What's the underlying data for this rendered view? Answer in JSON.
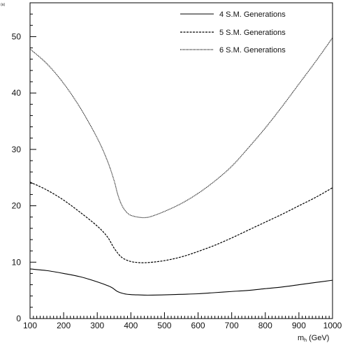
{
  "chart_data": {
    "type": "line",
    "title": "",
    "corner_label": "(a)",
    "xlabel": "m",
    "xlabel_sub": "h",
    "xlabel_unit": " (GeV)",
    "ylabel": "",
    "xlim": [
      100,
      1000
    ],
    "ylim": [
      0,
      56
    ],
    "xticks": [
      100,
      200,
      300,
      400,
      500,
      600,
      700,
      800,
      900,
      1000
    ],
    "yticks": [
      0,
      10,
      20,
      30,
      40,
      50
    ],
    "grid": false,
    "legend_position": "top-right",
    "series": [
      {
        "name": "4 S.M. Generations",
        "line_style": "solid",
        "x": [
          100,
          150,
          200,
          250,
          300,
          340,
          360,
          380,
          400,
          420,
          450,
          500,
          550,
          600,
          650,
          700,
          750,
          800,
          850,
          900,
          950,
          1000
        ],
        "y": [
          8.8,
          8.5,
          8.0,
          7.4,
          6.5,
          5.6,
          4.8,
          4.4,
          4.25,
          4.2,
          4.15,
          4.2,
          4.3,
          4.4,
          4.6,
          4.8,
          5.0,
          5.3,
          5.6,
          6.0,
          6.4,
          6.8
        ]
      },
      {
        "name": "5 S.M. Generations",
        "line_style": "dashed",
        "x": [
          100,
          150,
          200,
          250,
          300,
          330,
          350,
          370,
          390,
          410,
          440,
          480,
          520,
          560,
          600,
          650,
          700,
          750,
          800,
          850,
          900,
          950,
          1000
        ],
        "y": [
          24.2,
          22.8,
          21.0,
          18.8,
          16.4,
          14.5,
          12.5,
          11.0,
          10.3,
          10.0,
          9.9,
          10.1,
          10.5,
          11.1,
          11.9,
          13.0,
          14.3,
          15.7,
          17.1,
          18.5,
          20.0,
          21.5,
          23.2
        ]
      },
      {
        "name": "6 S.M. Generations",
        "line_style": "dotted",
        "x": [
          100,
          150,
          200,
          250,
          300,
          330,
          350,
          360,
          370,
          380,
          390,
          400,
          420,
          440,
          460,
          500,
          550,
          600,
          650,
          700,
          750,
          800,
          850,
          900,
          950,
          1000
        ],
        "y": [
          47.8,
          45.2,
          41.7,
          37.3,
          32.0,
          28.0,
          24.5,
          22.2,
          20.5,
          19.4,
          18.7,
          18.3,
          18.0,
          17.9,
          18.1,
          19.0,
          20.4,
          22.2,
          24.4,
          27.0,
          30.3,
          33.8,
          37.6,
          41.6,
          45.6,
          49.8
        ]
      }
    ]
  }
}
